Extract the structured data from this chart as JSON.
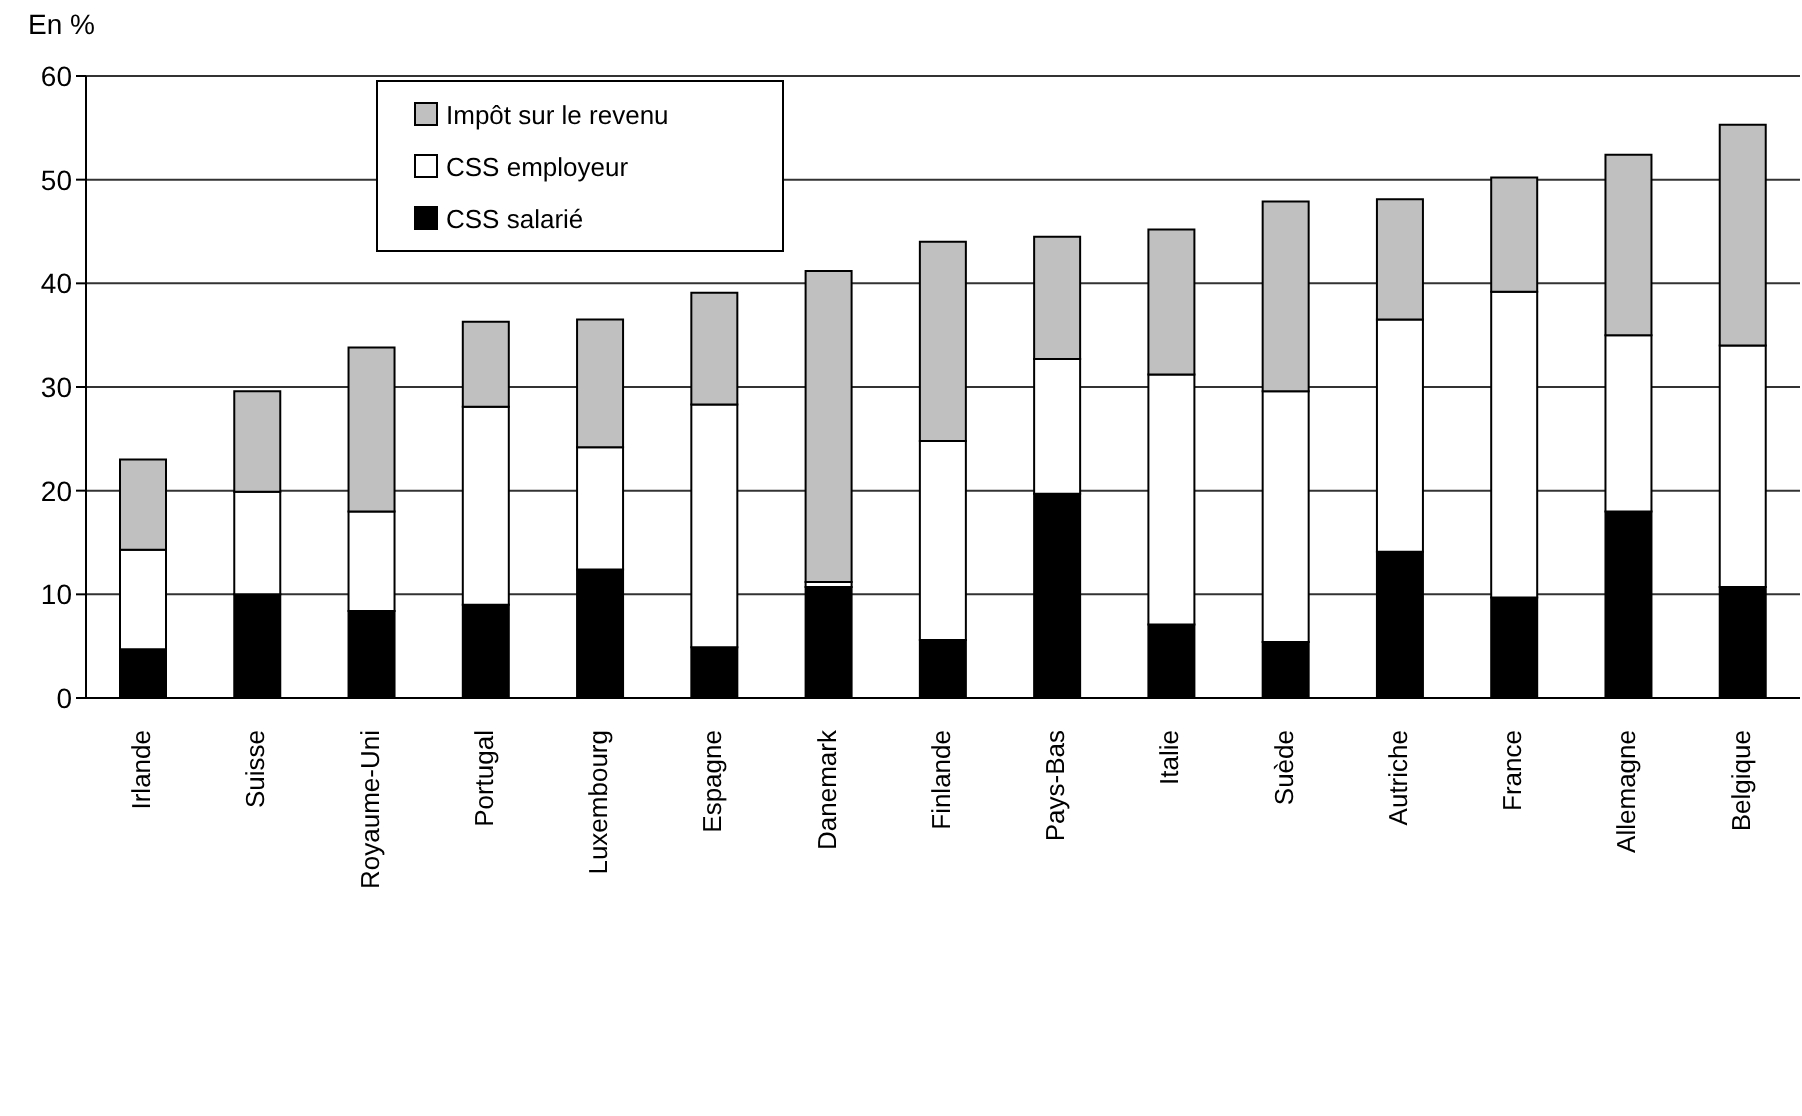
{
  "chart_data": {
    "type": "bar",
    "ylabel": "En %",
    "stacked": true,
    "categories": [
      "Irlande",
      "Suisse",
      "Royaume-Uni",
      "Portugal",
      "Luxembourg",
      "Espagne",
      "Danemark",
      "Finlande",
      "Pays-Bas",
      "Italie",
      "Suède",
      "Autriche",
      "France",
      "Allemagne",
      "Belgique"
    ],
    "series": [
      {
        "name": "CSS salarié",
        "color": "#000000",
        "values": [
          4.7,
          10.0,
          8.4,
          9.0,
          12.4,
          4.9,
          10.7,
          5.6,
          19.7,
          7.1,
          5.4,
          14.1,
          9.7,
          18.0,
          10.7
        ]
      },
      {
        "name": "CSS employeur",
        "color": "#ffffff",
        "values": [
          9.6,
          9.9,
          9.6,
          19.1,
          11.8,
          23.4,
          0.5,
          19.2,
          13.0,
          24.1,
          24.2,
          22.4,
          29.5,
          17.0,
          23.3
        ]
      },
      {
        "name": "Impôt sur le revenu",
        "color": "#c0c0c0",
        "values": [
          8.7,
          9.7,
          15.8,
          8.2,
          12.3,
          10.8,
          30.0,
          19.2,
          11.8,
          14.0,
          18.3,
          11.6,
          11.0,
          17.4,
          21.3
        ]
      }
    ],
    "ylim": [
      0,
      60
    ],
    "yticks": [
      0,
      10,
      20,
      30,
      40,
      50,
      60
    ],
    "grid": "y",
    "legend": "top left"
  }
}
